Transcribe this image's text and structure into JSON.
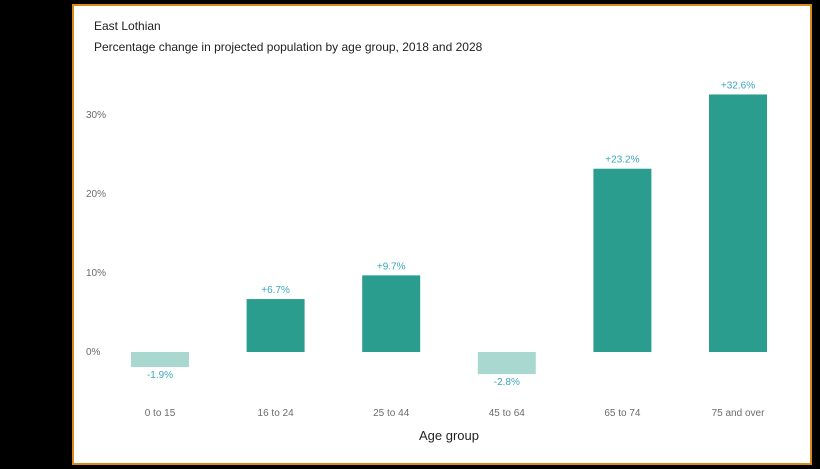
{
  "chart_data": {
    "type": "bar",
    "title": "East Lothian",
    "subtitle": "Percentage change in projected population by age group, 2018 and 2028",
    "xlabel": "Age group",
    "ylabel": "",
    "categories": [
      "0 to 15",
      "16 to 24",
      "25 to 44",
      "45 to 64",
      "65 to 74",
      "75 and over"
    ],
    "values": [
      -1.9,
      6.7,
      9.7,
      -2.8,
      23.2,
      32.6
    ],
    "value_labels": [
      "-1.9%",
      "+6.7%",
      "+9.7%",
      "-2.8%",
      "+23.2%",
      "+32.6%"
    ],
    "yticks": [
      0,
      10,
      20,
      30
    ],
    "ytick_labels": [
      "0%",
      "10%",
      "20%",
      "30%"
    ],
    "ylim": [
      -5,
      34
    ],
    "grid": false,
    "colors": {
      "positive": "#2a9d8f",
      "negative": "#a8d8d0",
      "label": "#3aa6b9"
    }
  }
}
